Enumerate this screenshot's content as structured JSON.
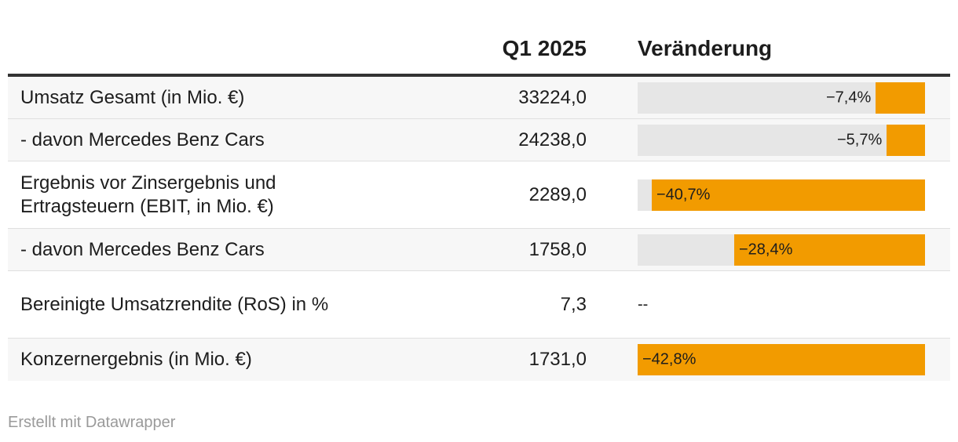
{
  "header": {
    "q1_label": "Q1 2025",
    "change_label": "Veränderung"
  },
  "rows": [
    {
      "label": "Umsatz Gesamt (in Mio. €)",
      "value": "33224,0",
      "change_label": "−7,4%",
      "change": -7.4
    },
    {
      "label": "- davon Mercedes Benz Cars",
      "value": "24238,0",
      "change_label": "−5,7%",
      "change": -5.7
    },
    {
      "label": "Ergebnis vor Zinsergebnis und Ertragsteuern (EBIT, in Mio. €)",
      "value": "2289,0",
      "change_label": "−40,7%",
      "change": -40.7
    },
    {
      "label": "- davon Mercedes Benz Cars",
      "value": "1758,0",
      "change_label": "−28,4%",
      "change": -28.4
    },
    {
      "label": "Bereinigte Umsatzrendite (RoS) in %",
      "value": "7,3",
      "change_label": "--",
      "change": null
    },
    {
      "label": "Konzernergebnis (in Mio. €)",
      "value": "1731,0",
      "change_label": "−42,8%",
      "change": -42.8
    }
  ],
  "chart_data": {
    "type": "table",
    "columns": [
      "",
      "Q1 2025",
      "Veränderung"
    ],
    "categories": [
      "Umsatz Gesamt (in Mio. €)",
      "- davon Mercedes Benz Cars",
      "Ergebnis vor Zinsergebnis und Ertragsteuern (EBIT, in Mio. €)",
      "- davon Mercedes Benz Cars",
      "Bereinigte Umsatzrendite (RoS) in %",
      "Konzernergebnis (in Mio. €)"
    ],
    "series": [
      {
        "name": "Q1 2025",
        "values": [
          33224.0,
          24238.0,
          2289.0,
          1758.0,
          7.3,
          1731.0
        ]
      },
      {
        "name": "Veränderung",
        "values": [
          -7.4,
          -5.7,
          -40.7,
          -28.4,
          null,
          -42.8
        ]
      }
    ],
    "bar_scale_max_abs": 42.8,
    "bar_color": "#f29b00",
    "bar_track_color": "#e6e6e6"
  },
  "footer": {
    "credit": "Erstellt mit Datawrapper"
  }
}
